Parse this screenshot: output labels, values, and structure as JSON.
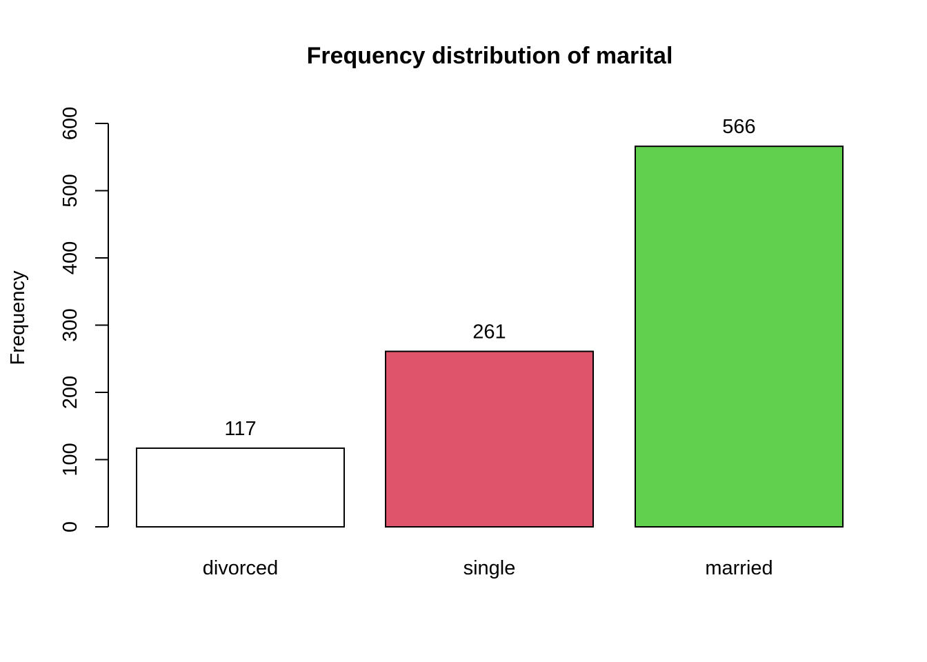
{
  "chart_data": {
    "type": "bar",
    "title": "Frequency distribution of marital",
    "xlabel": "",
    "ylabel": "Frequency",
    "categories": [
      "divorced",
      "single",
      "married"
    ],
    "values": [
      117,
      261,
      566
    ],
    "colors": [
      "#FFFFFF",
      "#DF536B",
      "#61D04F"
    ],
    "bar_labels": [
      "117",
      "261",
      "566"
    ],
    "ylim": [
      0,
      600
    ],
    "yticks": [
      0,
      100,
      200,
      300,
      400,
      500,
      600
    ],
    "ytick_labels": [
      "0",
      "100",
      "200",
      "300",
      "400",
      "500",
      "600"
    ],
    "grid": false,
    "legend": "none"
  }
}
